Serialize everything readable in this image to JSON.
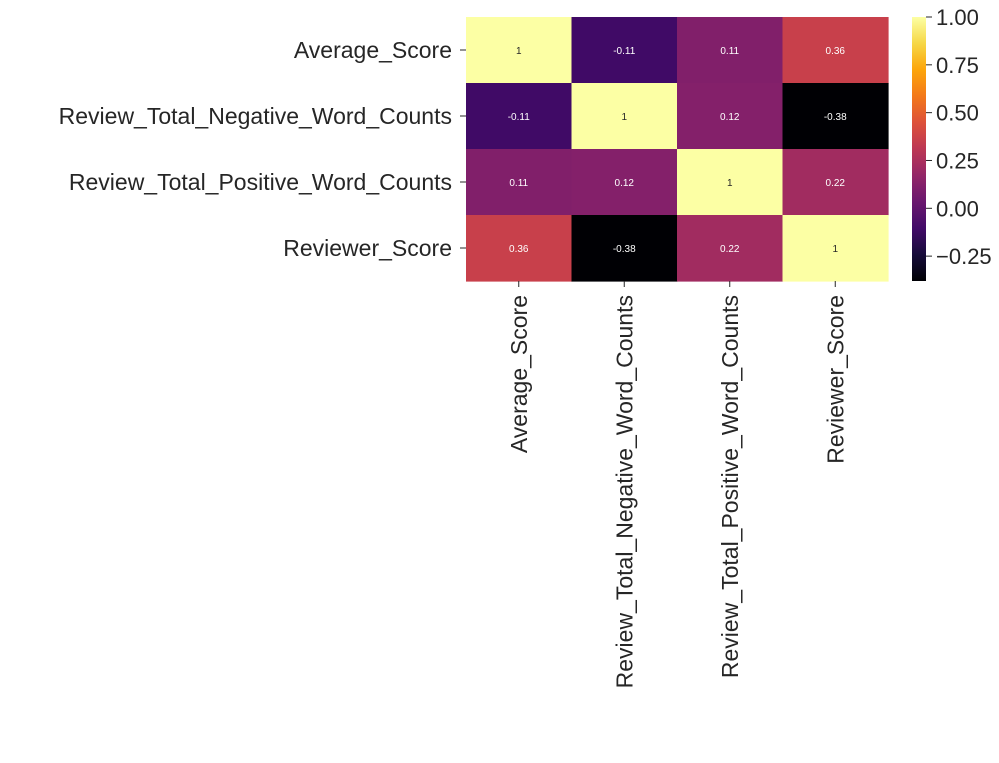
{
  "chart_data": {
    "type": "heatmap",
    "title": "",
    "xlabel": "",
    "ylabel": "",
    "row_labels": [
      "Average_Score",
      "Review_Total_Negative_Word_Counts",
      "Review_Total_Positive_Word_Counts",
      "Reviewer_Score"
    ],
    "column_labels": [
      "Average_Score",
      "Review_Total_Negative_Word_Counts",
      "Review_Total_Positive_Word_Counts",
      "Reviewer_Score"
    ],
    "values": [
      [
        1,
        -0.11,
        0.11,
        0.36
      ],
      [
        -0.11,
        1,
        0.12,
        -0.38
      ],
      [
        0.11,
        0.12,
        1,
        0.22
      ],
      [
        0.36,
        -0.38,
        0.22,
        1
      ]
    ],
    "value_labels": [
      [
        "1",
        "-0.11",
        "0.11",
        "0.36"
      ],
      [
        "-0.11",
        "1",
        "0.12",
        "-0.38"
      ],
      [
        "0.11",
        "0.12",
        "1",
        "0.22"
      ],
      [
        "0.36",
        "-0.38",
        "0.22",
        "1"
      ]
    ],
    "colormap": "inferno",
    "colorbar": {
      "range": [
        -0.38,
        1
      ],
      "ticks": [
        1.0,
        0.75,
        0.5,
        0.25,
        0.0,
        -0.25
      ],
      "tick_labels": [
        "1.00",
        "0.75",
        "0.50",
        "0.25",
        "0.00",
        "−0.25"
      ]
    },
    "grid": false,
    "legend": "colorbar at right"
  }
}
